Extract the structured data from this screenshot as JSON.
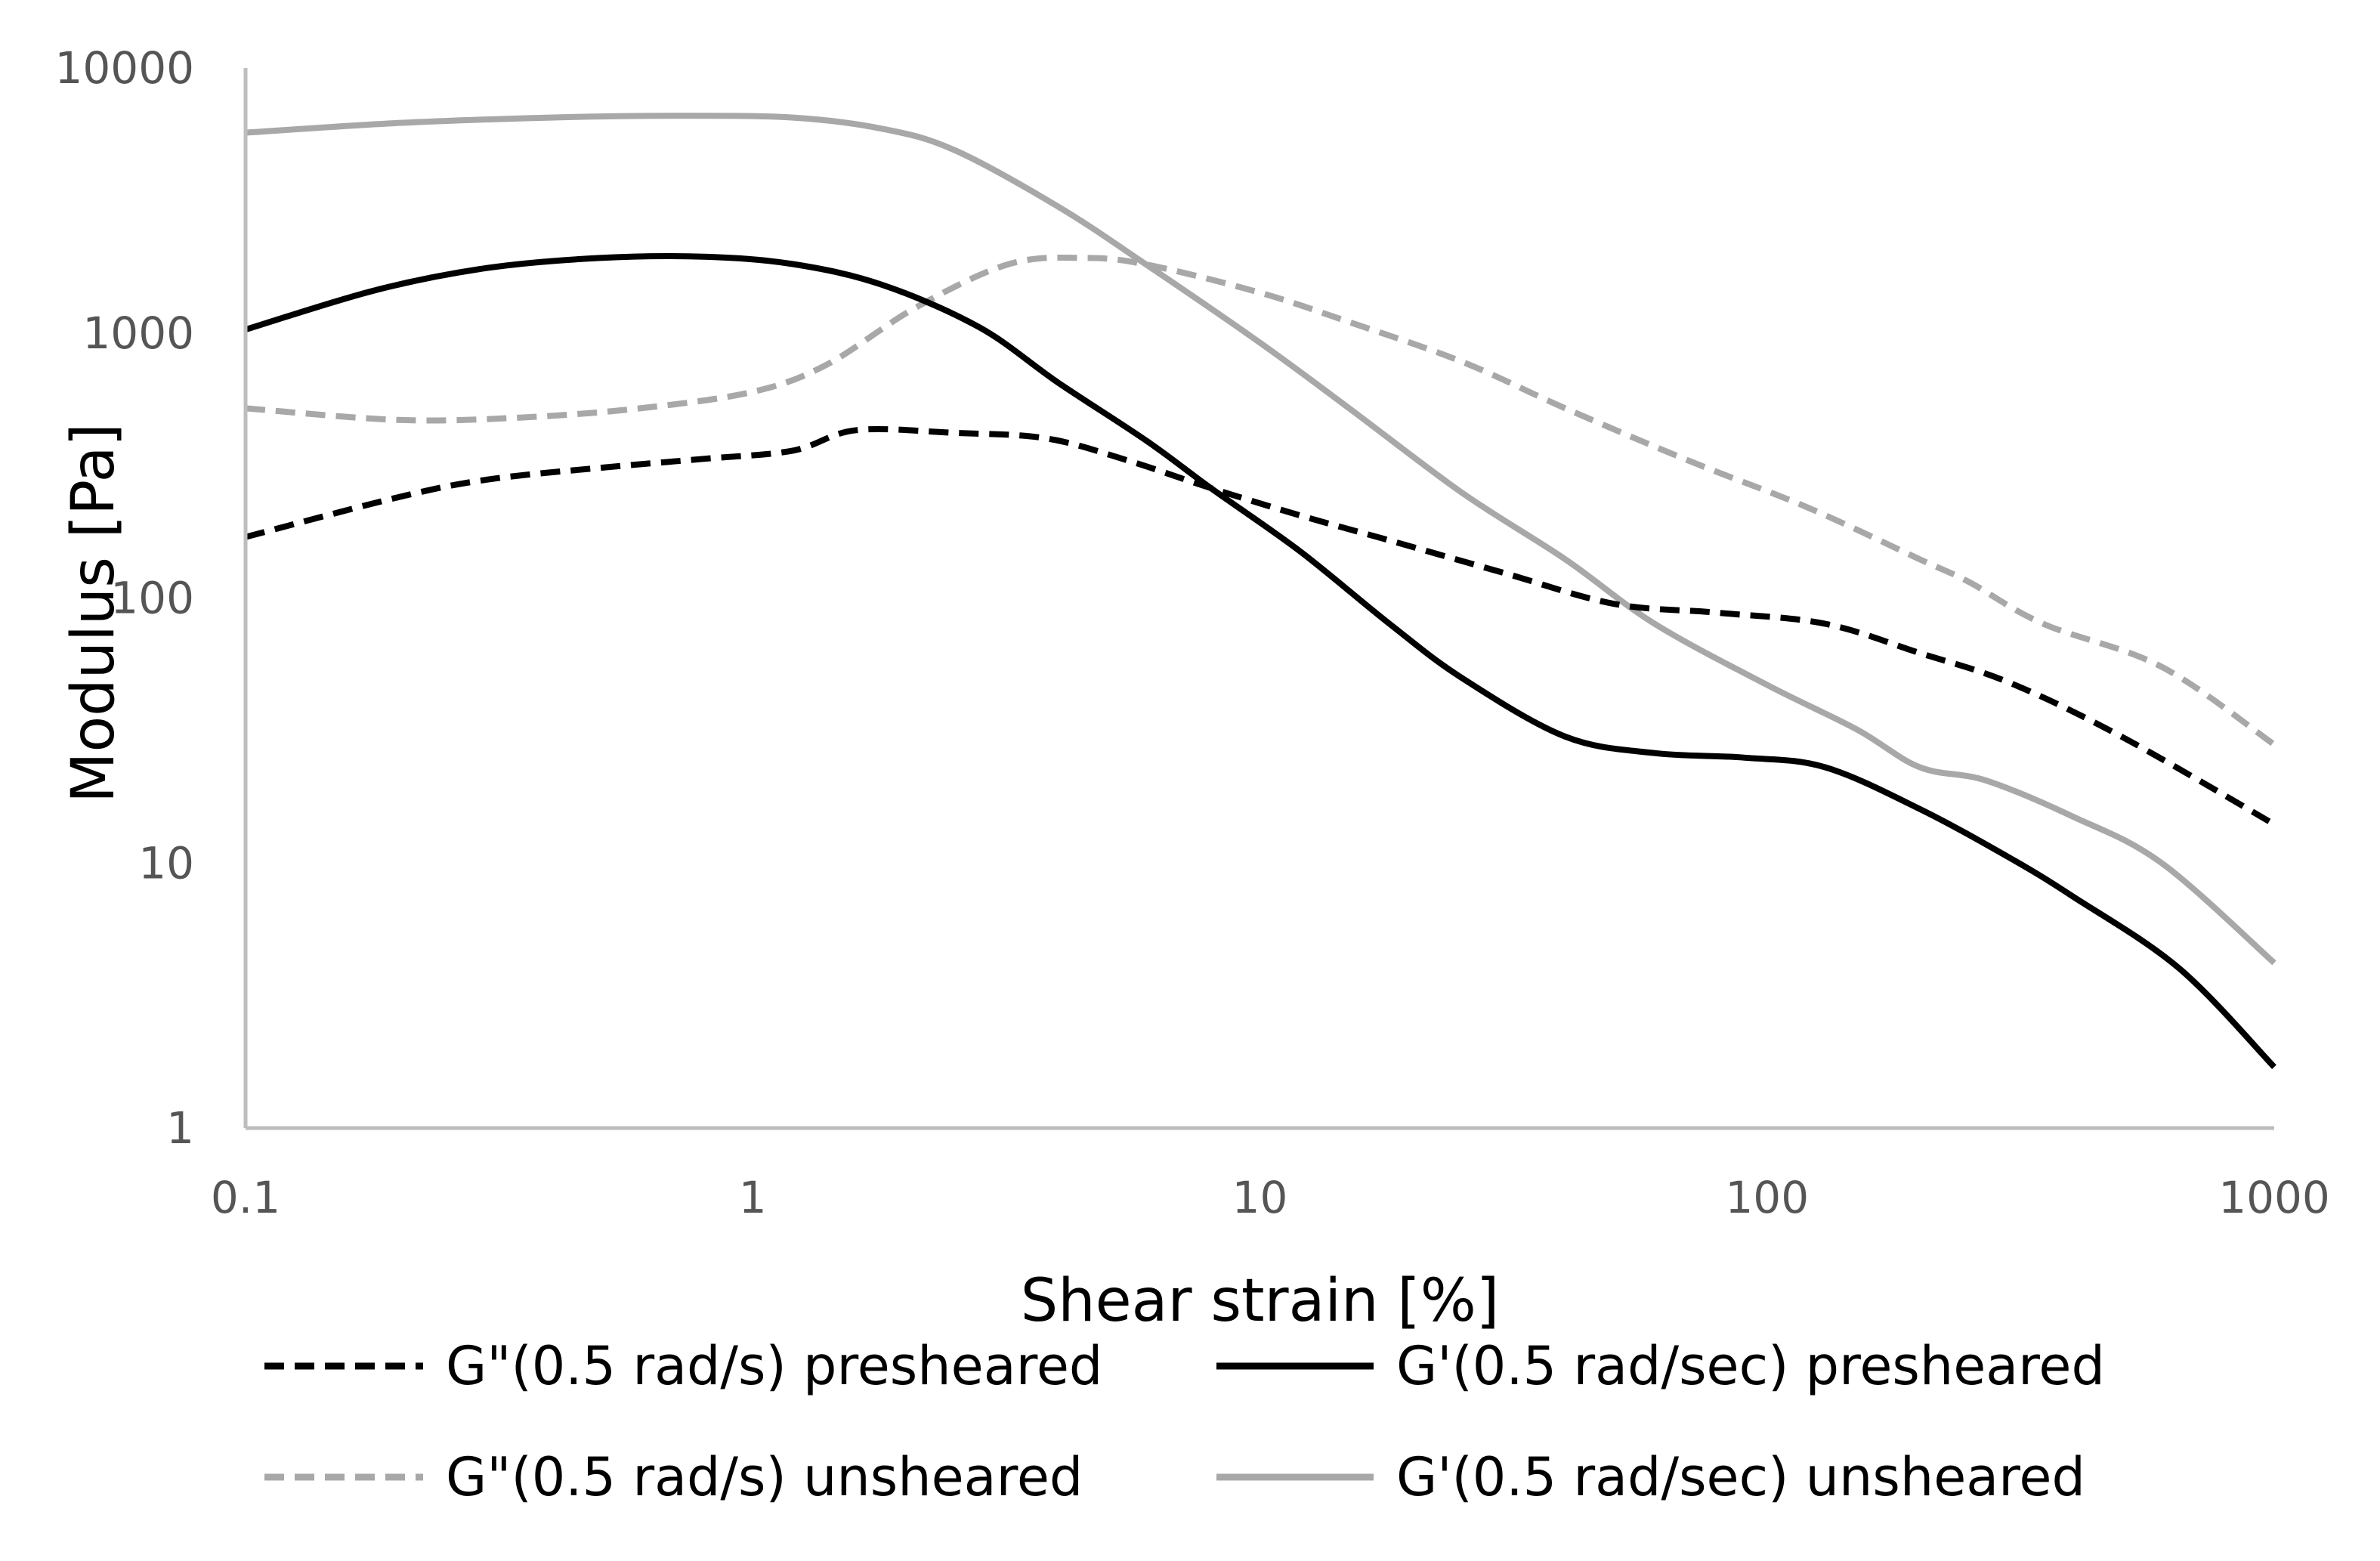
{
  "chart_data": {
    "type": "line",
    "title": "",
    "xlabel": "Shear strain [%]",
    "ylabel": "Modulus [Pa]",
    "xscale": "log",
    "yscale": "log",
    "xlim": [
      0.1,
      1000
    ],
    "ylim": [
      1,
      10000
    ],
    "grid": false,
    "legend_position": "bottom",
    "x_ticks": [
      "0.1",
      "1",
      "10",
      "100",
      "1000"
    ],
    "y_ticks": [
      "1",
      "10",
      "100",
      "1000",
      "10000"
    ],
    "series": [
      {
        "name": "G\"(0.5 rad/s) presheared",
        "color": "#000000",
        "style": "dashed",
        "x": [
          0.1,
          0.2,
          0.3,
          0.5,
          0.8,
          1.2,
          1.6,
          2.5,
          3.8,
          5.5,
          8,
          12,
          18,
          30,
          50,
          80,
          130,
          200,
          300,
          500,
          1000
        ],
        "y": [
          170,
          240,
          280,
          310,
          335,
          360,
          430,
          420,
          400,
          330,
          260,
          205,
          165,
          125,
          95,
          88,
          80,
          62,
          48,
          30,
          14
        ]
      },
      {
        "name": "G'(0.5 rad/sec) presheared",
        "color": "#000000",
        "style": "solid",
        "x": [
          0.1,
          0.18,
          0.3,
          0.5,
          0.8,
          1.2,
          1.8,
          2.8,
          4,
          6,
          8,
          12,
          18,
          25,
          40,
          60,
          90,
          130,
          200,
          300,
          400,
          650,
          1000
        ],
        "y": [
          1030,
          1450,
          1760,
          1920,
          1940,
          1820,
          1520,
          1050,
          650,
          390,
          260,
          150,
          80,
          50,
          30,
          26,
          25,
          23,
          16,
          10.5,
          7.5,
          4,
          1.7
        ]
      },
      {
        "name": "G\"(0.5 rad/s) unsheared",
        "color": "#a8a8a8",
        "style": "dashed",
        "x": [
          0.1,
          0.2,
          0.35,
          0.6,
          1,
          1.4,
          2.1,
          3.2,
          4.5,
          6,
          10,
          15,
          25,
          40,
          70,
          120,
          200,
          250,
          350,
          600,
          1000
        ],
        "y": [
          520,
          470,
          480,
          520,
          600,
          760,
          1250,
          1820,
          1920,
          1810,
          1420,
          1100,
          780,
          520,
          330,
          220,
          140,
          115,
          80,
          55,
          28
        ]
      },
      {
        "name": "G'(0.5 rad/sec) unsheared",
        "color": "#a8a8a8",
        "style": "solid",
        "x": [
          0.1,
          0.2,
          0.4,
          0.7,
          1.2,
          1.8,
          2.5,
          4,
          6,
          10,
          15,
          25,
          40,
          60,
          100,
          150,
          200,
          270,
          400,
          600,
          1000
        ],
        "y": [
          5700,
          6200,
          6500,
          6600,
          6500,
          5900,
          4900,
          3000,
          1800,
          920,
          520,
          250,
          140,
          80,
          47,
          32,
          23,
          20.5,
          15,
          10,
          4.2
        ]
      }
    ]
  }
}
